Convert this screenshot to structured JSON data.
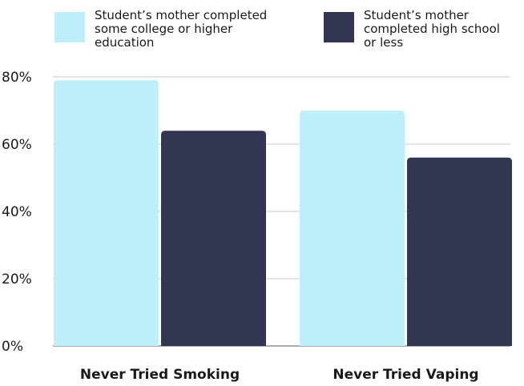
{
  "chart_data": {
    "type": "bar",
    "categories": [
      "Never Tried Smoking",
      "Never Tried Vaping"
    ],
    "series": [
      {
        "name_lines": [
          "Student’s mother completed",
          "some college or higher",
          "education"
        ],
        "color": "#bdeefa",
        "values": [
          79,
          70
        ]
      },
      {
        "name_lines": [
          "Student’s mother",
          "completed high school",
          "or less"
        ],
        "color": "#333652",
        "values": [
          64,
          56
        ]
      }
    ],
    "y_ticks": [
      "0%",
      "20%",
      "40%",
      "60%",
      "80%"
    ],
    "ylim": [
      0,
      80
    ],
    "grid": true,
    "legend": "top",
    "title": "",
    "xlabel": "",
    "ylabel": ""
  }
}
